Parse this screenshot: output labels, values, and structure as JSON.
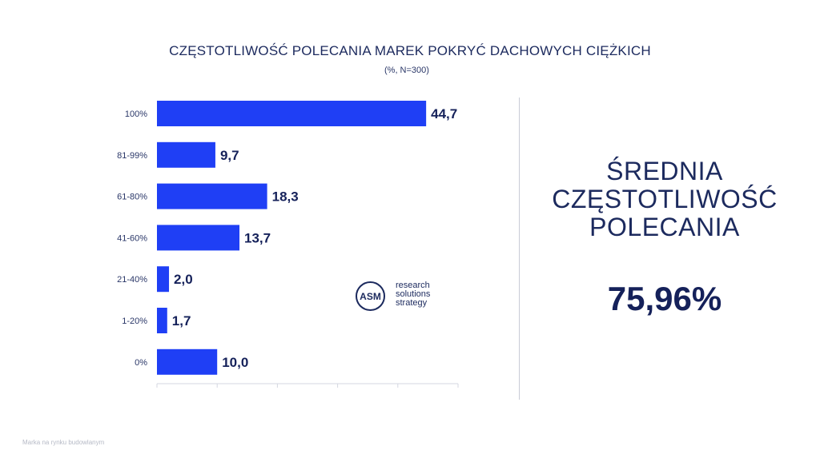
{
  "chart_data": {
    "type": "bar",
    "orientation": "horizontal",
    "title": "CZĘSTOTLIWOŚĆ POLECANIA MAREK POKRYĆ DACHOWYCH CIĘŻKICH",
    "subtitle": "(%, N=300)",
    "categories": [
      "100%",
      "81-99%",
      "61-80%",
      "41-60%",
      "21-40%",
      "1-20%",
      "0%"
    ],
    "values": [
      44.7,
      9.7,
      18.3,
      13.7,
      2.0,
      1.7,
      10.0
    ],
    "data_labels": [
      "44,7",
      "9,7",
      "18,3",
      "13,7",
      "2,0",
      "1,7",
      "10,0"
    ],
    "xlim": [
      0,
      50
    ],
    "grid": false,
    "bar_color": "#1f3ff5",
    "label_color": "#15215a"
  },
  "summary": {
    "label_lines": [
      "ŚREDNIA",
      "CZĘSTOTLIWOŚĆ",
      "POLECANIA"
    ],
    "value": "75,96%"
  },
  "logo": {
    "mark": "ASM",
    "lines": [
      "research",
      "solutions",
      "strategy"
    ]
  },
  "footer": "Marka na rynku budowlanym"
}
